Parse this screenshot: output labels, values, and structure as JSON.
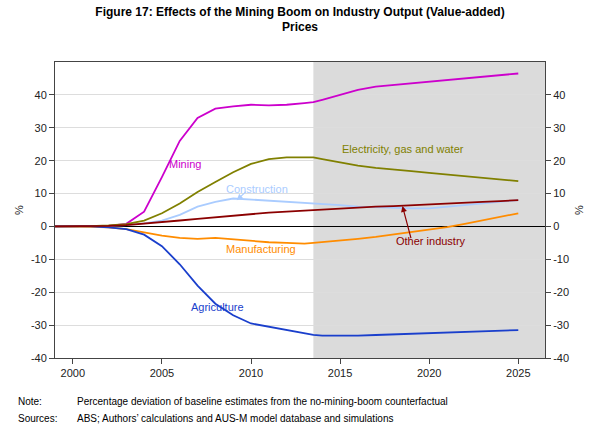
{
  "chart_data": {
    "type": "line",
    "title": "Figure 17: Effects of the Mining Boom on Industry Output (Value-added)",
    "subtitle": "Prices",
    "ylabel": "%",
    "y2label": "%",
    "notes": [
      {
        "label": "Note:",
        "text": "Percentage deviation of baseline estimates from the no-mining-boom counterfactual"
      },
      {
        "label": "Sources:",
        "text": "ABS; Authors’ calculations and AUS-M model database and simulations"
      }
    ],
    "x": [
      1999,
      2000,
      2001,
      2002,
      2003,
      2004,
      2005,
      2006,
      2007,
      2008,
      2009,
      2010,
      2011,
      2012,
      2013,
      2013.5,
      2014,
      2015,
      2016,
      2017,
      2018,
      2019,
      2020,
      2021,
      2022,
      2023,
      2024,
      2025
    ],
    "xlim": [
      1999,
      2026.5
    ],
    "xticks": [
      2000,
      2005,
      2010,
      2015,
      2020,
      2025
    ],
    "ylim": [
      -40,
      50
    ],
    "yticks": [
      -40,
      -30,
      -20,
      -10,
      0,
      10,
      20,
      30,
      40
    ],
    "y2lim": [
      -40,
      50
    ],
    "y2ticks": [
      -40,
      -30,
      -20,
      -10,
      0,
      10,
      20,
      30,
      40
    ],
    "grid": "y",
    "shaded_region": [
      2013.5,
      2026.5
    ],
    "series": [
      {
        "name": "Mining",
        "color": "#cc00cc",
        "values": [
          0,
          0.05,
          0.1,
          0.2,
          0.8,
          4.5,
          15.0,
          26.0,
          33.0,
          35.8,
          36.5,
          37.0,
          36.8,
          37.0,
          37.5,
          37.8,
          38.5,
          40.0,
          41.5,
          42.5,
          43.0,
          43.5,
          44.0,
          44.5,
          45.0,
          45.5,
          46.0,
          46.5
        ],
        "label_at": [
          2005.3,
          19
        ]
      },
      {
        "name": "Construction",
        "color": "#aaccff",
        "values": [
          0,
          0.0,
          0.05,
          0.15,
          0.4,
          0.9,
          1.8,
          3.5,
          6.0,
          7.5,
          8.5,
          8.2,
          7.8,
          7.5,
          7.2,
          7.0,
          6.8,
          6.5,
          6.0,
          5.8,
          5.5,
          5.5,
          5.5,
          6.0,
          6.5,
          7.0,
          7.5,
          8.0
        ],
        "label_at": [
          2008.5,
          11.5
        ],
        "arrow": {
          "from": [
            2009.8,
            11.0
          ],
          "to": [
            2009.2,
            8.0
          ]
        }
      },
      {
        "name": "Electricity, gas and water",
        "color": "#808000",
        "values": [
          0,
          0.0,
          0.1,
          0.3,
          0.7,
          1.8,
          4.0,
          7.0,
          10.5,
          13.5,
          16.5,
          19.0,
          20.5,
          21.0,
          21.0,
          21.0,
          20.5,
          19.5,
          18.5,
          17.8,
          17.2,
          16.8,
          16.3,
          15.8,
          15.2,
          14.7,
          14.2,
          13.8
        ],
        "label_at": [
          2015.0,
          23.5
        ]
      },
      {
        "name": "Manufacturing",
        "color": "#ff8c00",
        "values": [
          0,
          0.0,
          -0.1,
          -0.3,
          -0.8,
          -1.8,
          -2.8,
          -3.5,
          -3.8,
          -3.5,
          -4.0,
          -4.5,
          -4.8,
          -5.0,
          -5.2,
          -5.0,
          -4.8,
          -4.2,
          -3.8,
          -3.2,
          -2.5,
          -1.8,
          -1.0,
          -0.2,
          0.8,
          1.8,
          3.0,
          4.0
        ],
        "label_at": [
          2008.5,
          -7.0
        ]
      },
      {
        "name": "Agriculture",
        "color": "#1a3fcc",
        "values": [
          0,
          0.0,
          0.0,
          -0.3,
          -0.8,
          -2.5,
          -6.0,
          -11.5,
          -18.0,
          -23.5,
          -27.0,
          -29.5,
          -30.5,
          -31.5,
          -32.5,
          -33.0,
          -33.2,
          -33.3,
          -33.2,
          -33.0,
          -32.8,
          -32.5,
          -32.3,
          -32.2,
          -32.0,
          -31.8,
          -31.7,
          -31.5
        ],
        "label_at": [
          2006.5,
          -24.5
        ]
      },
      {
        "name": "Other industry",
        "color": "#8b0000",
        "values": [
          0,
          0.0,
          0.05,
          0.15,
          0.4,
          0.8,
          1.3,
          1.8,
          2.3,
          2.8,
          3.2,
          3.7,
          4.2,
          4.5,
          4.8,
          5.0,
          5.3,
          5.5,
          5.8,
          6.0,
          6.2,
          6.5,
          6.8,
          7.0,
          7.2,
          7.5,
          7.7,
          8.0
        ],
        "label_at": [
          2018.0,
          -4.5
        ],
        "arrow": {
          "from": [
            2019.0,
            -4.0
          ],
          "to": [
            2018.5,
            6.2
          ]
        }
      }
    ]
  }
}
